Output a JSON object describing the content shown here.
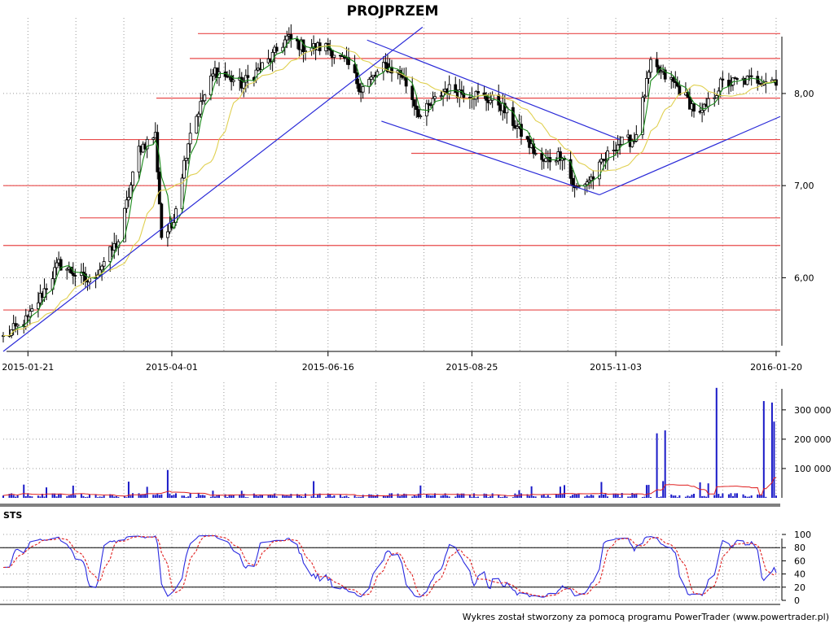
{
  "title": "PROJPRZEM",
  "footer": "Wykres został stworzony za pomocą programu PowerTrader (www.powertrader.pl)",
  "sts_label": "STS",
  "colors": {
    "up_candle": "#ffffff",
    "down_candle": "#000000",
    "ma_short": "#1a8a1a",
    "ma_long": "#e0d050",
    "support_lines": "#e84a4a",
    "trend_lines": "#2a2ad8",
    "volume_bars": "#1a1ac8",
    "volume_avg": "#e02020",
    "sts_k": "#2a2ae0",
    "sts_d": "#e02020",
    "grid": "#999999"
  },
  "chart_data": [
    {
      "type": "candlestick",
      "name": "price",
      "x_range": [
        "2015-01-09",
        "2016-01-22"
      ],
      "y_range": [
        5.2,
        8.75
      ],
      "x_tick_labels": [
        "2015-01-21",
        "2015-04-01",
        "2015-06-16",
        "2015-08-25",
        "2015-11-03",
        "2016-01-20"
      ],
      "y_ticks": [
        6.0,
        7.0,
        8.0
      ],
      "y_tick_labels": [
        "6,00",
        "7,00",
        "8,00"
      ],
      "grid": true,
      "close_series": [
        {
          "date": "2015-01-09",
          "close": 5.35
        },
        {
          "date": "2015-01-21",
          "close": 5.55
        },
        {
          "date": "2015-02-05",
          "close": 6.15
        },
        {
          "date": "2015-02-20",
          "close": 5.95
        },
        {
          "date": "2015-03-06",
          "close": 6.4
        },
        {
          "date": "2015-03-16",
          "close": 7.4
        },
        {
          "date": "2015-03-24",
          "close": 7.55
        },
        {
          "date": "2015-03-27",
          "close": 6.45
        },
        {
          "date": "2015-04-01",
          "close": 6.55
        },
        {
          "date": "2015-04-10",
          "close": 7.6
        },
        {
          "date": "2015-04-22",
          "close": 8.25
        },
        {
          "date": "2015-05-05",
          "close": 8.1
        },
        {
          "date": "2015-05-18",
          "close": 8.35
        },
        {
          "date": "2015-05-27",
          "close": 8.6
        },
        {
          "date": "2015-06-05",
          "close": 8.5
        },
        {
          "date": "2015-06-16",
          "close": 8.5
        },
        {
          "date": "2015-06-26",
          "close": 8.3
        },
        {
          "date": "2015-07-02",
          "close": 8.05
        },
        {
          "date": "2015-07-14",
          "close": 8.3
        },
        {
          "date": "2015-07-22",
          "close": 8.2
        },
        {
          "date": "2015-07-31",
          "close": 7.75
        },
        {
          "date": "2015-08-12",
          "close": 8.05
        },
        {
          "date": "2015-08-25",
          "close": 8.0
        },
        {
          "date": "2015-09-07",
          "close": 7.9
        },
        {
          "date": "2015-09-17",
          "close": 7.6
        },
        {
          "date": "2015-09-28",
          "close": 7.25
        },
        {
          "date": "2015-10-08",
          "close": 7.35
        },
        {
          "date": "2015-10-14",
          "close": 6.95
        },
        {
          "date": "2015-10-23",
          "close": 7.1
        },
        {
          "date": "2015-11-03",
          "close": 7.45
        },
        {
          "date": "2015-11-12",
          "close": 7.5
        },
        {
          "date": "2015-11-20",
          "close": 8.3
        },
        {
          "date": "2015-12-02",
          "close": 8.1
        },
        {
          "date": "2015-12-14",
          "close": 7.75
        },
        {
          "date": "2015-12-24",
          "close": 8.1
        },
        {
          "date": "2016-01-08",
          "close": 8.15
        },
        {
          "date": "2016-01-20",
          "close": 8.15
        }
      ],
      "horizontal_levels": [
        5.65,
        6.35,
        6.65,
        7.0,
        7.35,
        7.5,
        7.95,
        8.38,
        8.65
      ],
      "trend_lines": [
        {
          "from": {
            "date": "2015-01-09",
            "price": 5.2
          },
          "to": {
            "date": "2015-08-01",
            "price": 8.72
          }
        },
        {
          "from": {
            "date": "2015-07-05",
            "price": 8.58
          },
          "to": {
            "date": "2015-11-05",
            "price": 7.5
          }
        },
        {
          "from": {
            "date": "2015-07-12",
            "price": 7.7
          },
          "to": {
            "date": "2015-10-26",
            "price": 6.9
          }
        },
        {
          "from": {
            "date": "2015-10-26",
            "price": 6.9
          },
          "to": {
            "date": "2016-01-22",
            "price": 7.75
          }
        }
      ]
    },
    {
      "type": "bar",
      "name": "volume",
      "y_range": [
        0,
        380000
      ],
      "y_ticks": [
        100000,
        200000,
        300000
      ],
      "y_tick_labels": [
        "100 000",
        "200 000",
        "300 000"
      ],
      "grid": true,
      "notable_bars": [
        {
          "date": "2015-03-30",
          "volume": 95000
        },
        {
          "date": "2015-11-23",
          "volume": 220000
        },
        {
          "date": "2015-11-27",
          "volume": 230000
        },
        {
          "date": "2015-12-22",
          "volume": 375000
        },
        {
          "date": "2016-01-14",
          "volume": 330000
        },
        {
          "date": "2016-01-18",
          "volume": 325000
        },
        {
          "date": "2016-01-19",
          "volume": 260000
        }
      ]
    },
    {
      "type": "line",
      "name": "STS",
      "y_range": [
        0,
        100
      ],
      "y_ticks": [
        0,
        20,
        40,
        60,
        80,
        100
      ],
      "y_tick_labels": [
        "0",
        "20",
        "40",
        "60",
        "80",
        "100"
      ],
      "reference_lines": [
        20,
        80
      ],
      "grid": true
    }
  ]
}
